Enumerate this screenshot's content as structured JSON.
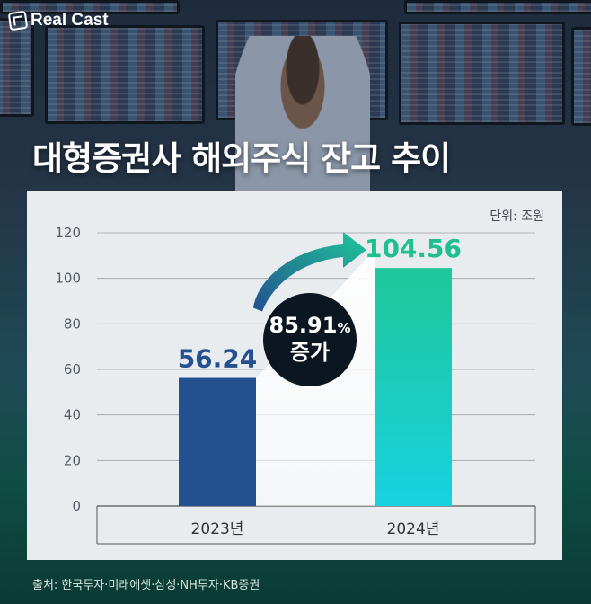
{
  "brand": {
    "logo_text": "Real Cast"
  },
  "header": {
    "title": "대형증권사 해외주식 잔고 추이"
  },
  "colors": {
    "bar_2023": "#23508f",
    "bar_2024_top": "#1fc79a",
    "bar_2024_bottom": "#18d2e0",
    "value_2023": "#23508f",
    "value_2024": "#1fbf8f",
    "badge_bg": "#0b1620",
    "card_bg": "#e9ecef"
  },
  "chart_data": {
    "type": "bar",
    "unit_label": "단위: 조원",
    "categories": [
      "2023년",
      "2024년"
    ],
    "values": [
      56.24,
      104.56
    ],
    "value_labels": [
      "56.24",
      "104.56"
    ],
    "ylim": [
      0,
      120
    ],
    "yticks": [
      "0",
      "20",
      "40",
      "60",
      "80",
      "100",
      "120"
    ],
    "grid": true,
    "annotation": {
      "value": "85.91",
      "suffix": "%",
      "line2": "증가"
    }
  },
  "footer": {
    "source": "출처: 한국투자·미래에셋·삼성·NH투자·KB증권"
  }
}
